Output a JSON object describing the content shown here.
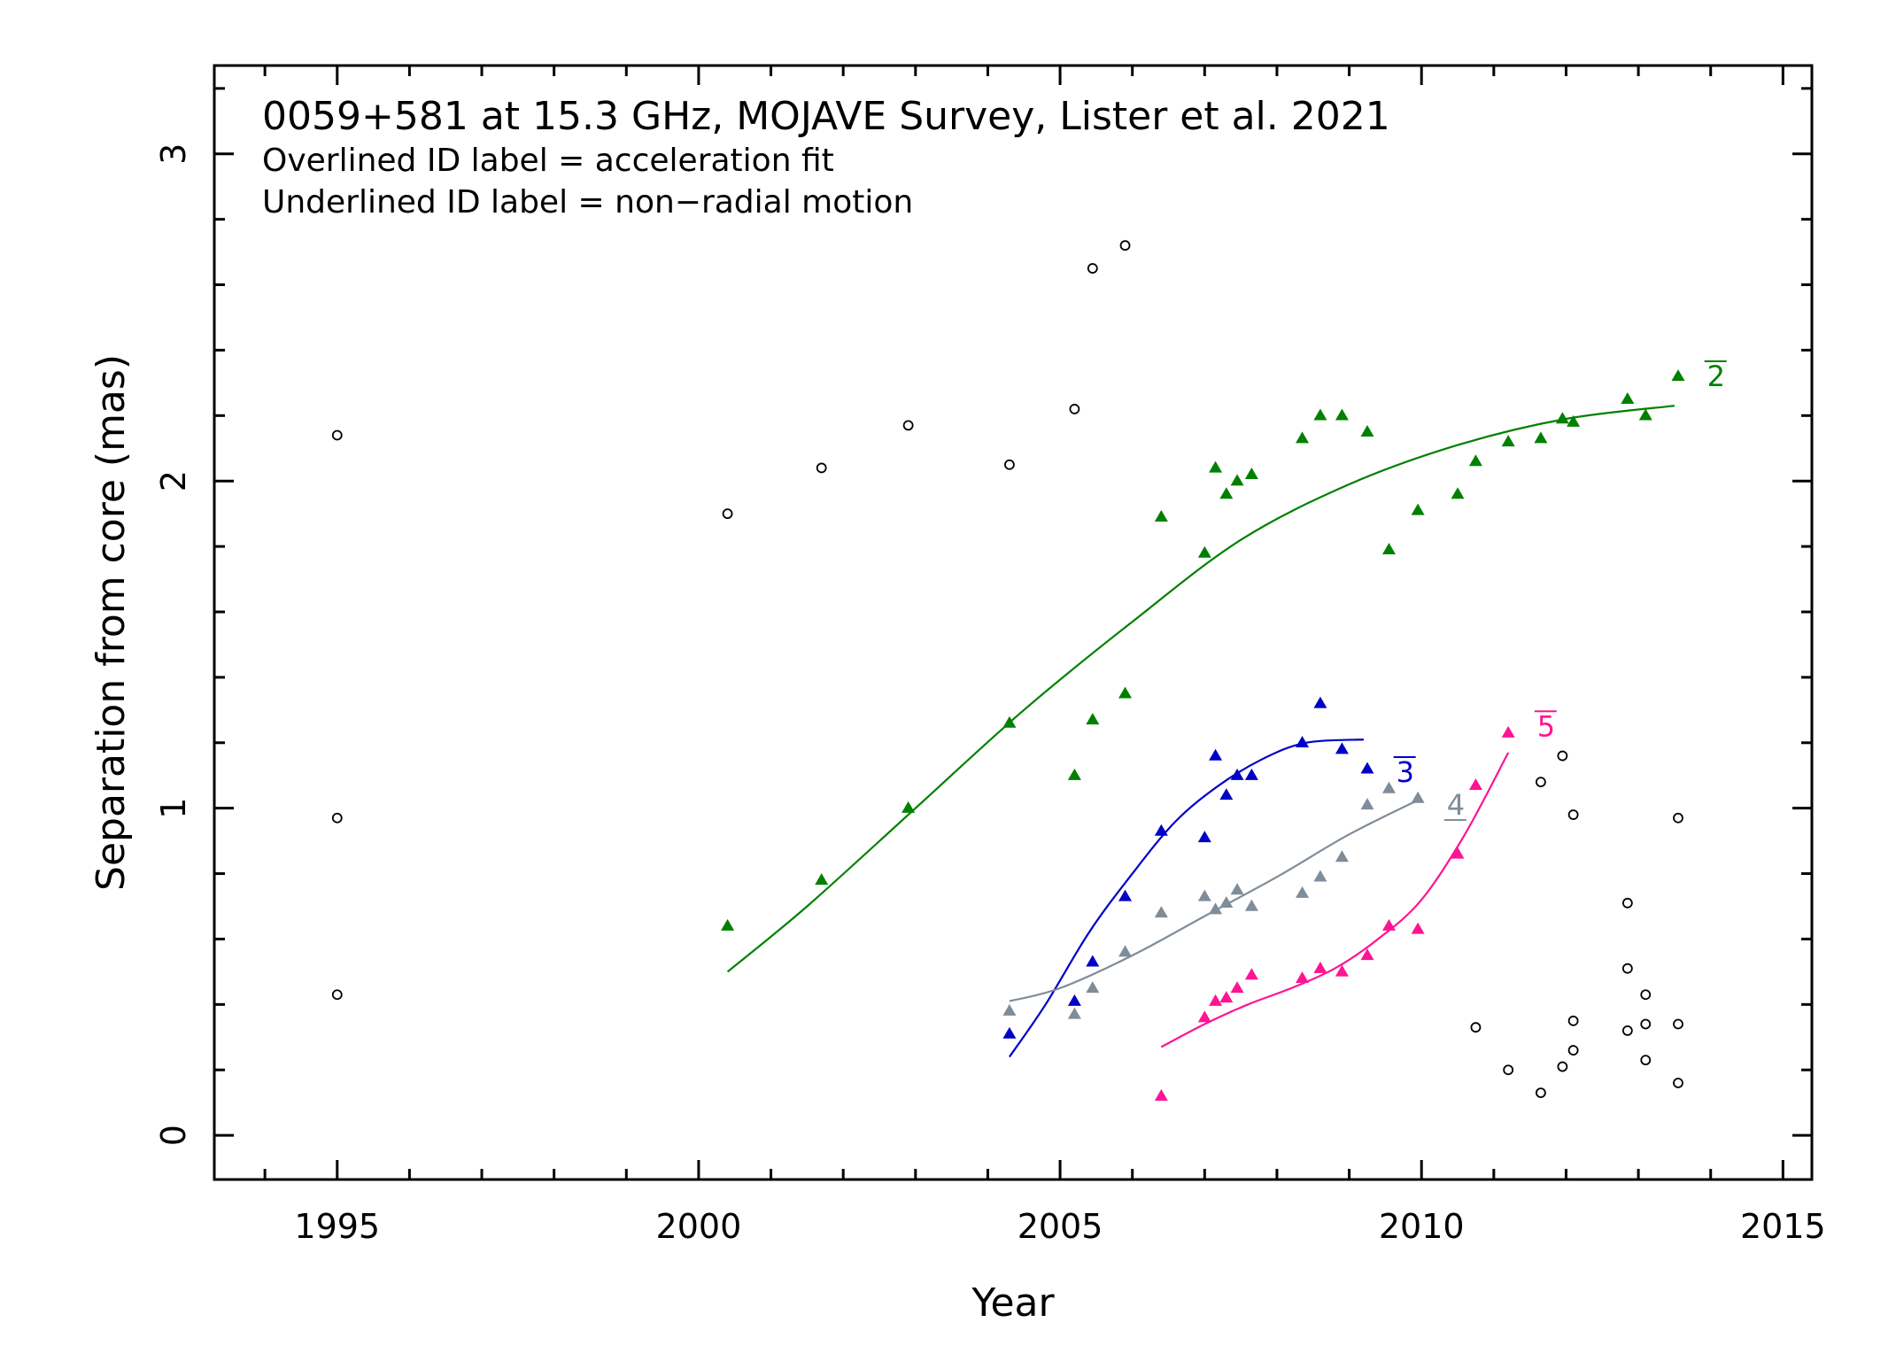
{
  "chart_data": {
    "type": "scatter",
    "title": "0059+581 at 15.3 GHz, MOJAVE Survey, Lister et al. 2021",
    "notes": [
      "Overlined ID label = acceleration fit",
      "Underlined ID label = non−radial motion"
    ],
    "xlabel": "Year",
    "ylabel": "Separation from core (mas)",
    "xlim": [
      1993.3,
      2015.4
    ],
    "ylim": [
      -0.135,
      3.27
    ],
    "x_ticks": [
      1995,
      2000,
      2005,
      2010,
      2015
    ],
    "y_ticks": [
      0,
      1,
      2,
      3
    ],
    "x_tick_labels": [
      "1995",
      "2000",
      "2005",
      "2010",
      "2015"
    ],
    "y_tick_labels": [
      "0",
      "1",
      "2",
      "3"
    ],
    "grid": false,
    "legend": "none",
    "series": [
      {
        "name": "2",
        "color": "#008000",
        "marker": "triangle",
        "label_style": "overline",
        "points": [
          [
            2000.4,
            0.64
          ],
          [
            2001.7,
            0.78
          ],
          [
            2002.9,
            1.0
          ],
          [
            2004.3,
            1.26
          ],
          [
            2005.2,
            1.1
          ],
          [
            2005.45,
            1.27
          ],
          [
            2005.9,
            1.35
          ],
          [
            2006.4,
            1.89
          ],
          [
            2007.0,
            1.78
          ],
          [
            2007.15,
            2.04
          ],
          [
            2007.3,
            1.96
          ],
          [
            2007.45,
            2.0
          ],
          [
            2007.65,
            2.02
          ],
          [
            2008.35,
            2.13
          ],
          [
            2008.6,
            2.2
          ],
          [
            2008.9,
            2.2
          ],
          [
            2009.25,
            2.15
          ],
          [
            2009.55,
            1.79
          ],
          [
            2009.95,
            1.91
          ],
          [
            2010.5,
            1.96
          ],
          [
            2010.75,
            2.06
          ],
          [
            2011.2,
            2.12
          ],
          [
            2011.65,
            2.13
          ],
          [
            2011.95,
            2.19
          ],
          [
            2012.1,
            2.18
          ],
          [
            2012.85,
            2.25
          ],
          [
            2013.1,
            2.2
          ],
          [
            2013.55,
            2.32
          ]
        ],
        "fit": [
          [
            2000.4,
            0.5
          ],
          [
            2001.5,
            0.7
          ],
          [
            2003.0,
            1.0
          ],
          [
            2004.5,
            1.3
          ],
          [
            2006.0,
            1.57
          ],
          [
            2007.5,
            1.82
          ],
          [
            2009.0,
            1.99
          ],
          [
            2010.5,
            2.11
          ],
          [
            2012.0,
            2.19
          ],
          [
            2013.5,
            2.23
          ]
        ]
      },
      {
        "name": "3",
        "color": "#0000c8",
        "marker": "triangle",
        "label_style": "overline",
        "points": [
          [
            2004.3,
            0.31
          ],
          [
            2005.2,
            0.41
          ],
          [
            2005.45,
            0.53
          ],
          [
            2005.9,
            0.73
          ],
          [
            2006.4,
            0.93
          ],
          [
            2007.0,
            0.91
          ],
          [
            2007.15,
            1.16
          ],
          [
            2007.3,
            1.04
          ],
          [
            2007.45,
            1.1
          ],
          [
            2007.65,
            1.1
          ],
          [
            2008.35,
            1.2
          ],
          [
            2008.6,
            1.32
          ],
          [
            2008.9,
            1.18
          ],
          [
            2009.25,
            1.12
          ]
        ],
        "fit": [
          [
            2004.3,
            0.24
          ],
          [
            2004.8,
            0.4
          ],
          [
            2005.4,
            0.62
          ],
          [
            2006.0,
            0.8
          ],
          [
            2006.6,
            0.96
          ],
          [
            2007.2,
            1.07
          ],
          [
            2007.8,
            1.15
          ],
          [
            2008.4,
            1.2
          ],
          [
            2009.2,
            1.21
          ]
        ]
      },
      {
        "name": "4",
        "color": "#7f8c99",
        "marker": "triangle",
        "label_style": "underline",
        "points": [
          [
            2004.3,
            0.38
          ],
          [
            2005.2,
            0.37
          ],
          [
            2005.45,
            0.45
          ],
          [
            2005.9,
            0.56
          ],
          [
            2006.4,
            0.68
          ],
          [
            2007.0,
            0.73
          ],
          [
            2007.15,
            0.69
          ],
          [
            2007.3,
            0.71
          ],
          [
            2007.45,
            0.75
          ],
          [
            2007.65,
            0.7
          ],
          [
            2008.35,
            0.74
          ],
          [
            2008.6,
            0.79
          ],
          [
            2008.9,
            0.85
          ],
          [
            2009.25,
            1.01
          ],
          [
            2009.55,
            1.06
          ],
          [
            2009.95,
            1.03
          ]
        ],
        "fit": [
          [
            2004.3,
            0.41
          ],
          [
            2005.0,
            0.45
          ],
          [
            2006.0,
            0.55
          ],
          [
            2007.0,
            0.67
          ],
          [
            2008.0,
            0.79
          ],
          [
            2009.0,
            0.92
          ],
          [
            2010.0,
            1.03
          ]
        ]
      },
      {
        "name": "5",
        "color": "#ff1493",
        "marker": "triangle",
        "label_style": "overline",
        "points": [
          [
            2006.4,
            0.12
          ],
          [
            2007.0,
            0.36
          ],
          [
            2007.15,
            0.41
          ],
          [
            2007.3,
            0.42
          ],
          [
            2007.45,
            0.45
          ],
          [
            2007.65,
            0.49
          ],
          [
            2008.35,
            0.48
          ],
          [
            2008.6,
            0.51
          ],
          [
            2008.9,
            0.5
          ],
          [
            2009.25,
            0.55
          ],
          [
            2009.55,
            0.64
          ],
          [
            2009.95,
            0.63
          ],
          [
            2010.5,
            0.86
          ],
          [
            2010.75,
            1.07
          ],
          [
            2011.2,
            1.23
          ]
        ],
        "fit": [
          [
            2006.4,
            0.27
          ],
          [
            2007.0,
            0.34
          ],
          [
            2007.6,
            0.4
          ],
          [
            2008.2,
            0.45
          ],
          [
            2008.8,
            0.51
          ],
          [
            2009.4,
            0.6
          ],
          [
            2010.0,
            0.72
          ],
          [
            2010.6,
            0.92
          ],
          [
            2011.2,
            1.17
          ]
        ]
      },
      {
        "name": "",
        "color": "#000000",
        "marker": "open-circle",
        "points": [
          [
            1995.0,
            2.14
          ],
          [
            1995.0,
            0.97
          ],
          [
            1995.0,
            0.43
          ],
          [
            2000.4,
            1.9
          ],
          [
            2001.7,
            2.04
          ],
          [
            2002.9,
            2.17
          ],
          [
            2004.3,
            2.05
          ],
          [
            2005.2,
            2.22
          ],
          [
            2005.45,
            2.65
          ],
          [
            2005.9,
            2.72
          ],
          [
            2010.75,
            0.33
          ],
          [
            2011.2,
            0.2
          ],
          [
            2011.65,
            0.13
          ],
          [
            2011.65,
            1.08
          ],
          [
            2011.95,
            1.16
          ],
          [
            2011.95,
            0.21
          ],
          [
            2012.1,
            0.98
          ],
          [
            2012.1,
            0.35
          ],
          [
            2012.1,
            0.26
          ],
          [
            2012.85,
            0.71
          ],
          [
            2012.85,
            0.51
          ],
          [
            2012.85,
            0.32
          ],
          [
            2013.1,
            0.43
          ],
          [
            2013.1,
            0.34
          ],
          [
            2013.1,
            0.23
          ],
          [
            2013.55,
            0.97
          ],
          [
            2013.55,
            0.34
          ],
          [
            2013.55,
            0.16
          ]
        ]
      }
    ]
  }
}
